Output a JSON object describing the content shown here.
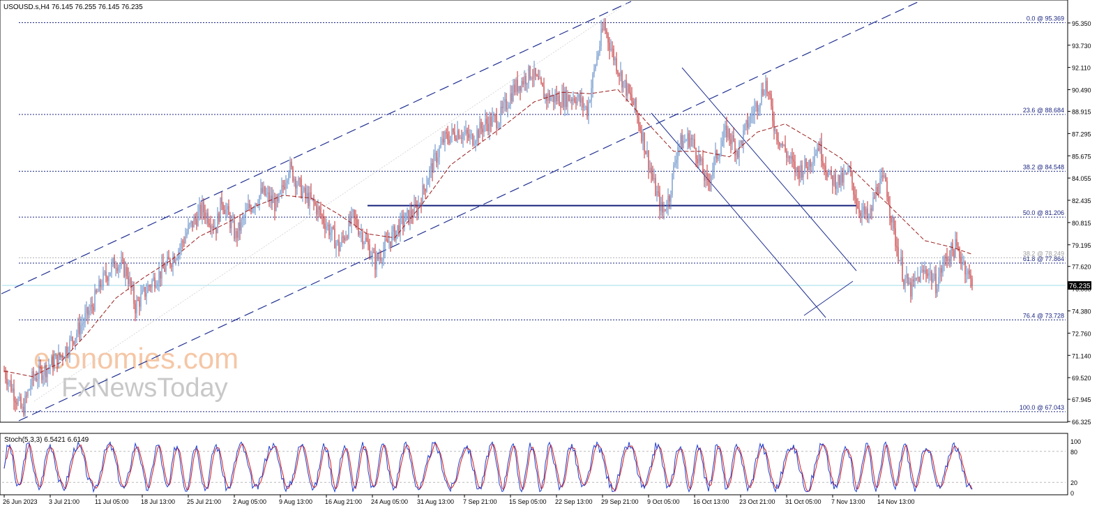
{
  "header": {
    "symbol": "USOUSD.s,H4",
    "ohlc": "76.145 76.255 76.145 76.235"
  },
  "watermark": {
    "line1": "economies.com",
    "line2": "FxNewsToday"
  },
  "colors": {
    "bull": "#5b87c5",
    "bear": "#c0282c",
    "ma": "#9a1c1c",
    "channel": "#1f2f8f",
    "horizontal": "#14207a",
    "fib": "#1a2580",
    "current": "#9fdbe8",
    "stoch_main": "#1e3fd0",
    "stoch_signal": "#d81a1a",
    "watermark": "#f5c7a6",
    "watermark2": "#c8c8c8"
  },
  "chart_data": [
    {
      "type": "line",
      "subtype": "candlestick",
      "title": "USOUSD.s,H4",
      "ylim": [
        66.325,
        96.97
      ],
      "y_ticks": [
        95.35,
        93.73,
        92.11,
        90.49,
        88.915,
        87.295,
        85.675,
        84.055,
        82.435,
        80.815,
        79.195,
        77.62,
        76.0,
        74.38,
        72.76,
        71.14,
        69.52,
        67.945,
        66.325
      ],
      "y_tick_labels": [
        "95.350",
        "93.730",
        "92.110",
        "90.490",
        "88.915",
        "87.295",
        "85.675",
        "84.055",
        "82.435",
        "80.815",
        "79.195",
        "77.620",
        "76.000",
        "74.380",
        "72.760",
        "71.140",
        "69.520",
        "67.945",
        "66.325"
      ],
      "x_tick_labels": [
        "26 Jun 2023",
        "3 Jul 21:00",
        "11 Jul 05:00",
        "18 Jul 13:00",
        "25 Jul 21:00",
        "2 Aug 05:00",
        "9 Aug 13:00",
        "16 Aug 21:00",
        "24 Aug 05:00",
        "31 Aug 13:00",
        "7 Sep 21:00",
        "15 Sep 05:00",
        "22 Sep 13:00",
        "29 Sep 21:00",
        "9 Oct 05:00",
        "16 Oct 13:00",
        "23 Oct 21:00",
        "31 Oct 05:00",
        "7 Nov 13:00",
        "14 Nov 13:00"
      ],
      "x_tick_bars": [
        0,
        33,
        66,
        99,
        132,
        165,
        198,
        231,
        264,
        297,
        330,
        363,
        396,
        429,
        462,
        495,
        528,
        561,
        594,
        627
      ],
      "current_price": 76.235,
      "current_price_label": "76.235",
      "price_anchors": [
        [
          0,
          70.0
        ],
        [
          8,
          68.2
        ],
        [
          13,
          67.04
        ],
        [
          20,
          69.4
        ],
        [
          30,
          70.2
        ],
        [
          40,
          71.0
        ],
        [
          50,
          72.5
        ],
        [
          62,
          74.5
        ],
        [
          70,
          76.5
        ],
        [
          80,
          78.0
        ],
        [
          88,
          77.2
        ],
        [
          94,
          74.7
        ],
        [
          106,
          76.5
        ],
        [
          116,
          77.6
        ],
        [
          126,
          79.0
        ],
        [
          132,
          80.3
        ],
        [
          142,
          81.8
        ],
        [
          152,
          80.5
        ],
        [
          156,
          82.5
        ],
        [
          166,
          79.8
        ],
        [
          175,
          81.8
        ],
        [
          185,
          83.0
        ],
        [
          196,
          82.0
        ],
        [
          204,
          84.9
        ],
        [
          215,
          82.8
        ],
        [
          222,
          82.2
        ],
        [
          232,
          80.5
        ],
        [
          240,
          79.0
        ],
        [
          250,
          81.2
        ],
        [
          259,
          79.5
        ],
        [
          266,
          77.9
        ],
        [
          276,
          79.5
        ],
        [
          285,
          80.8
        ],
        [
          296,
          81.8
        ],
        [
          305,
          84.5
        ],
        [
          315,
          86.8
        ],
        [
          325,
          87.5
        ],
        [
          335,
          86.9
        ],
        [
          345,
          88.0
        ],
        [
          355,
          88.4
        ],
        [
          365,
          90.5
        ],
        [
          378,
          91.8
        ],
        [
          388,
          90.0
        ],
        [
          398,
          89.8
        ],
        [
          410,
          90.0
        ],
        [
          418,
          89.0
        ],
        [
          424,
          92.4
        ],
        [
          430,
          95.2
        ],
        [
          436,
          93.2
        ],
        [
          444,
          91.0
        ],
        [
          452,
          89.2
        ],
        [
          458,
          87.0
        ],
        [
          466,
          83.5
        ],
        [
          472,
          81.5
        ],
        [
          477,
          82.8
        ],
        [
          483,
          86.5
        ],
        [
          492,
          87.0
        ],
        [
          498,
          85.5
        ],
        [
          504,
          83.5
        ],
        [
          510,
          85.5
        ],
        [
          518,
          87.5
        ],
        [
          526,
          86.0
        ],
        [
          533,
          88.0
        ],
        [
          540,
          89.5
        ],
        [
          546,
          91.0
        ],
        [
          553,
          87.5
        ],
        [
          560,
          86.0
        ],
        [
          568,
          84.5
        ],
        [
          576,
          85.0
        ],
        [
          584,
          86.5
        ],
        [
          592,
          84.0
        ],
        [
          600,
          83.8
        ],
        [
          606,
          84.5
        ],
        [
          612,
          82.0
        ],
        [
          620,
          81.0
        ],
        [
          626,
          83.5
        ],
        [
          632,
          83.8
        ],
        [
          638,
          80.0
        ],
        [
          645,
          76.8
        ],
        [
          650,
          75.9
        ],
        [
          656,
          76.9
        ],
        [
          662,
          77.4
        ],
        [
          668,
          76.3
        ],
        [
          675,
          78.2
        ],
        [
          682,
          79.0
        ],
        [
          688,
          77.9
        ],
        [
          694,
          76.235
        ]
      ],
      "ma_anchors": [
        [
          0,
          70.0
        ],
        [
          20,
          69.6
        ],
        [
          40,
          70.6
        ],
        [
          60,
          72.8
        ],
        [
          80,
          75.3
        ],
        [
          100,
          76.8
        ],
        [
          120,
          78.1
        ],
        [
          140,
          79.8
        ],
        [
          160,
          80.8
        ],
        [
          180,
          82.0
        ],
        [
          200,
          82.8
        ],
        [
          220,
          82.6
        ],
        [
          240,
          81.4
        ],
        [
          260,
          80.0
        ],
        [
          280,
          79.7
        ],
        [
          300,
          82.2
        ],
        [
          320,
          85.0
        ],
        [
          340,
          86.5
        ],
        [
          360,
          88.0
        ],
        [
          380,
          89.6
        ],
        [
          400,
          90.3
        ],
        [
          420,
          90.2
        ],
        [
          440,
          90.5
        ],
        [
          460,
          88.2
        ],
        [
          480,
          86.0
        ],
        [
          500,
          86.0
        ],
        [
          520,
          85.6
        ],
        [
          540,
          87.4
        ],
        [
          560,
          88.0
        ],
        [
          580,
          86.8
        ],
        [
          600,
          85.5
        ],
        [
          620,
          83.5
        ],
        [
          640,
          81.5
        ],
        [
          660,
          79.5
        ],
        [
          680,
          79.0
        ],
        [
          694,
          78.5
        ]
      ],
      "fibonacci": [
        {
          "label": "0.0 @ 95.369",
          "value": 95.369
        },
        {
          "label": "23.6 @ 88.684",
          "value": 88.684
        },
        {
          "label": "38.2 @ 84.548",
          "value": 84.548
        },
        {
          "label": "50.0 @ 81.206",
          "value": 81.206
        },
        {
          "label": "61.8 @ 77.864",
          "value": 77.864
        },
        {
          "label": "76.4 @ 73.728",
          "value": 73.728
        },
        {
          "label": "100.0 @ 67.043",
          "value": 67.043
        }
      ],
      "fib_secondary": {
        "label": "38.2 @ 78.249",
        "value": 78.249
      },
      "horizontal_level": 82.05
    },
    {
      "type": "line",
      "title": "Stoch(5,3,3) 6.5421 6.6149",
      "ylim": [
        0,
        100
      ],
      "y_tick_labels": [
        "100",
        "80",
        "20",
        "0"
      ],
      "y_ticks": [
        100,
        80,
        20,
        0
      ],
      "levels": [
        80,
        20
      ],
      "last_main": 6.5421,
      "last_signal": 6.6149
    }
  ]
}
